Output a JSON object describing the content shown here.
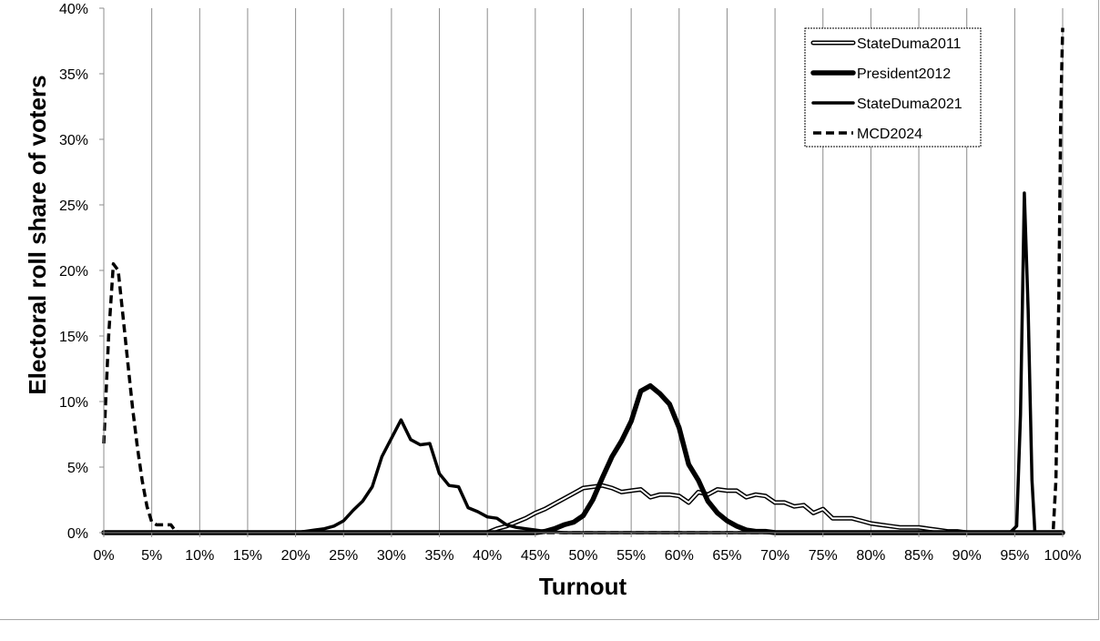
{
  "chart_data": {
    "type": "line",
    "title": "",
    "xlabel": "Turnout",
    "ylabel": "Electoral roll share of voters",
    "xlim": [
      0,
      100
    ],
    "ylim": [
      0,
      40
    ],
    "x_ticks": [
      "0%",
      "5%",
      "10%",
      "15%",
      "20%",
      "25%",
      "30%",
      "35%",
      "40%",
      "45%",
      "50%",
      "55%",
      "60%",
      "65%",
      "70%",
      "75%",
      "80%",
      "85%",
      "90%",
      "95%",
      "100%"
    ],
    "y_ticks": [
      "0%",
      "5%",
      "10%",
      "15%",
      "20%",
      "25%",
      "30%",
      "35%",
      "40%"
    ],
    "grid": "vertical",
    "legend_position": "top-right",
    "series": [
      {
        "name": "StateDuma2011",
        "style": "double",
        "x": [
          0,
          40,
          41,
          42,
          43,
          44,
          45,
          46,
          47,
          48,
          49,
          50,
          51,
          52,
          53,
          54,
          55,
          56,
          57,
          58,
          59,
          60,
          61,
          62,
          63,
          64,
          65,
          66,
          67,
          68,
          69,
          70,
          71,
          72,
          73,
          74,
          75,
          76,
          77,
          78,
          79,
          80,
          81,
          82,
          83,
          84,
          85,
          86,
          87,
          88,
          89,
          90,
          95,
          100
        ],
        "y": [
          0,
          0,
          0.3,
          0.5,
          0.8,
          1.1,
          1.5,
          1.8,
          2.2,
          2.6,
          3.0,
          3.4,
          3.5,
          3.6,
          3.4,
          3.1,
          3.2,
          3.3,
          2.7,
          2.9,
          2.9,
          2.8,
          2.3,
          3.1,
          2.9,
          3.3,
          3.2,
          3.2,
          2.7,
          2.9,
          2.8,
          2.3,
          2.3,
          2.0,
          2.1,
          1.5,
          1.8,
          1.1,
          1.1,
          1.1,
          0.9,
          0.7,
          0.6,
          0.5,
          0.4,
          0.4,
          0.4,
          0.3,
          0.2,
          0.1,
          0.1,
          0,
          0,
          0
        ]
      },
      {
        "name": "President2012",
        "style": "thick",
        "x": [
          0,
          45,
          46,
          47,
          48,
          49,
          50,
          51,
          52,
          53,
          54,
          55,
          56,
          57,
          58,
          59,
          60,
          61,
          62,
          63,
          64,
          65,
          66,
          67,
          68,
          69,
          70,
          75,
          80,
          85,
          90,
          95,
          100
        ],
        "y": [
          0,
          0,
          0.1,
          0.3,
          0.6,
          0.8,
          1.3,
          2.5,
          4.2,
          5.8,
          7.0,
          8.5,
          10.8,
          11.2,
          10.6,
          9.8,
          8.0,
          5.2,
          4.0,
          2.4,
          1.5,
          0.9,
          0.5,
          0.2,
          0.1,
          0.1,
          0,
          0,
          0,
          0,
          0,
          0,
          0
        ]
      },
      {
        "name": "StateDuma2021",
        "style": "medium",
        "x": [
          0,
          20,
          21,
          22,
          23,
          24,
          25,
          26,
          27,
          28,
          29,
          30,
          31,
          32,
          33,
          34,
          35,
          36,
          37,
          38,
          39,
          40,
          41,
          42,
          43,
          44,
          45,
          46,
          47,
          48,
          94.5,
          95.2,
          95.6,
          96.0,
          96.4,
          96.8,
          97.1,
          100
        ],
        "y": [
          0,
          0,
          0.1,
          0.2,
          0.3,
          0.5,
          0.9,
          1.7,
          2.4,
          3.5,
          5.8,
          7.2,
          8.6,
          7.1,
          6.7,
          6.8,
          4.5,
          3.6,
          3.5,
          1.9,
          1.6,
          1.2,
          1.1,
          0.6,
          0.4,
          0.3,
          0.2,
          0.1,
          0.05,
          0,
          0,
          0.5,
          9.0,
          25.9,
          17.0,
          4.0,
          0,
          0
        ]
      },
      {
        "name": "MCD2024",
        "style": "dashed",
        "x": [
          0,
          0.5,
          1.0,
          1.5,
          2.0,
          2.5,
          3.0,
          3.5,
          4.0,
          4.5,
          5.0,
          5.5,
          6.0,
          7.0,
          7.5,
          8.0,
          90,
          99.0,
          99.3,
          99.6,
          99.8,
          100
        ],
        "y": [
          6.8,
          15.0,
          20.5,
          20.0,
          16.5,
          13.0,
          9.5,
          6.5,
          4.0,
          2.0,
          0.8,
          0.6,
          0.6,
          0.6,
          0.1,
          0,
          0,
          0,
          4.0,
          18.0,
          32.0,
          38.5
        ]
      }
    ]
  }
}
